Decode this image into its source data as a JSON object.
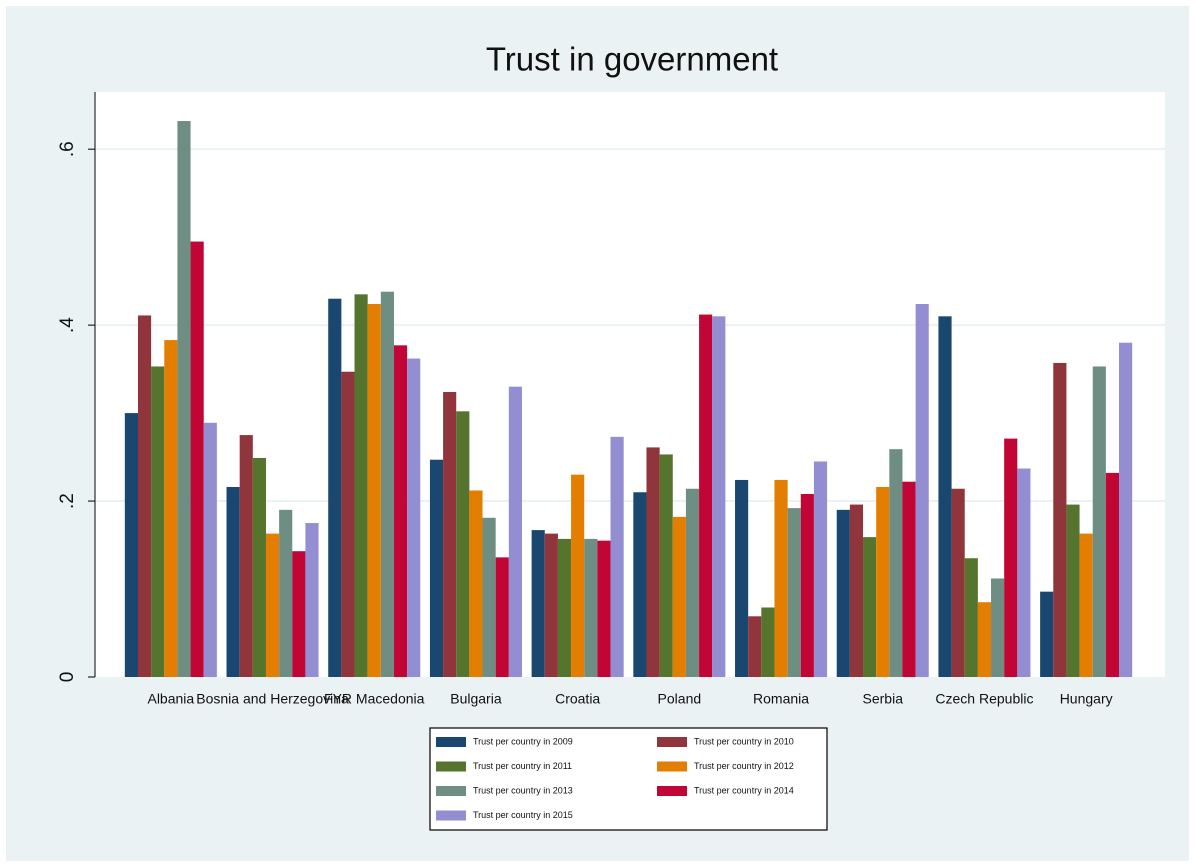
{
  "chart_data": {
    "type": "bar",
    "title": "Trust in government",
    "categories": [
      "Albania",
      "Bosnia and Herzegovina",
      "FYR Macedonia",
      "Bulgaria",
      "Croatia",
      "Poland",
      "Romania",
      "Serbia",
      "Czech Republic",
      "Hungary"
    ],
    "series": [
      {
        "name": "Trust per country in 2009",
        "color": "#1a476f",
        "values": [
          0.3,
          0.216,
          0.43,
          0.247,
          0.167,
          0.21,
          0.224,
          0.19,
          0.41,
          0.097
        ]
      },
      {
        "name": "Trust per country in 2010",
        "color": "#90353b",
        "values": [
          0.411,
          0.275,
          0.347,
          0.324,
          0.163,
          0.261,
          0.069,
          0.196,
          0.214,
          0.357
        ]
      },
      {
        "name": "Trust per country in 2011",
        "color": "#55752f",
        "values": [
          0.353,
          0.249,
          0.435,
          0.302,
          0.157,
          0.253,
          0.079,
          0.159,
          0.135,
          0.196
        ]
      },
      {
        "name": "Trust per country in 2012",
        "color": "#e37e00",
        "values": [
          0.383,
          0.163,
          0.424,
          0.212,
          0.23,
          0.182,
          0.224,
          0.216,
          0.085,
          0.163
        ]
      },
      {
        "name": "Trust per country in 2013",
        "color": "#6e8e84",
        "values": [
          0.632,
          0.19,
          0.438,
          0.181,
          0.157,
          0.214,
          0.192,
          0.259,
          0.112,
          0.353
        ]
      },
      {
        "name": "Trust per country in 2014",
        "color": "#c10534",
        "values": [
          0.495,
          0.143,
          0.377,
          0.136,
          0.155,
          0.412,
          0.208,
          0.222,
          0.271,
          0.232
        ]
      },
      {
        "name": "Trust per country in 2015",
        "color": "#938dd2",
        "values": [
          0.289,
          0.175,
          0.362,
          0.33,
          0.273,
          0.41,
          0.245,
          0.424,
          0.237,
          0.38
        ]
      }
    ],
    "ylim": [
      0,
      0.665
    ],
    "yticks": [
      0,
      {
        "value": 0.2,
        "label": ".2"
      },
      {
        "value": 0.4,
        "label": ".4"
      },
      {
        "value": 0.6,
        "label": ".6"
      }
    ],
    "grid": true
  }
}
